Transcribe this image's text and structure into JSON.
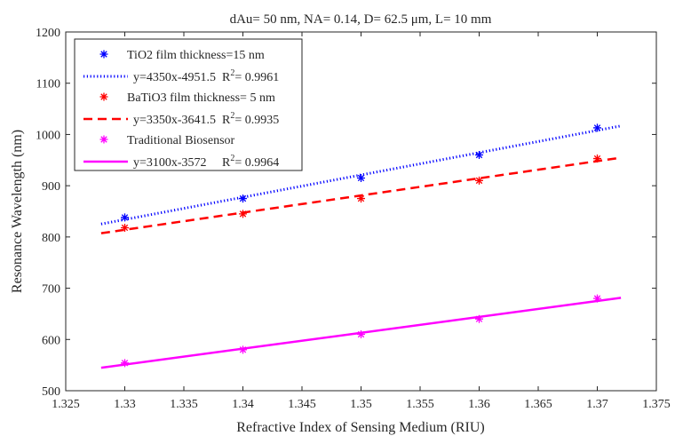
{
  "chart_data": {
    "type": "scatter",
    "title": "dAu= 50 nm,  NA= 0.14,  D= 62.5 μm,  L= 10 mm",
    "xlabel": "Refractive Index of Sensing Medium (RIU)",
    "ylabel": "Resonance Wavelength (nm)",
    "xlim": [
      1.325,
      1.375
    ],
    "ylim": [
      500,
      1200
    ],
    "xticks": [
      "1.325",
      "1.33",
      "1.335",
      "1.34",
      "1.345",
      "1.35",
      "1.355",
      "1.36",
      "1.365",
      "1.37",
      "1.375"
    ],
    "yticks": [
      "500",
      "600",
      "700",
      "800",
      "900",
      "1000",
      "1100",
      "1200"
    ],
    "grid": false,
    "legend_position": "top-left",
    "series": [
      {
        "name": "TiO2  film thickness=15 nm",
        "marker": "*",
        "color": "#0000ff",
        "x": [
          1.33,
          1.34,
          1.35,
          1.36,
          1.37
        ],
        "y": [
          838,
          875,
          915,
          960,
          1013
        ],
        "fit": {
          "slope": 4350,
          "intercept": -4951.5,
          "x_range": [
            1.328,
            1.372
          ],
          "style": "dotted",
          "color": "#0000ff",
          "equation": "y=4350x-4951.5",
          "r2_value": "= 0.9961"
        }
      },
      {
        "name": "BaTiO3  film thickness= 5 nm",
        "marker": "*",
        "color": "#ff0000",
        "x": [
          1.33,
          1.34,
          1.35,
          1.36,
          1.37
        ],
        "y": [
          818,
          845,
          875,
          910,
          953
        ],
        "fit": {
          "slope": 3350,
          "intercept": -3641.5,
          "x_range": [
            1.328,
            1.372
          ],
          "style": "dashed",
          "color": "#ff0000",
          "equation": "y=3350x-3641.5",
          "r2_value": "= 0.9935"
        }
      },
      {
        "name": "Traditional Biosensor",
        "marker": "*",
        "color": "#ff00ff",
        "x": [
          1.33,
          1.34,
          1.35,
          1.36,
          1.37
        ],
        "y": [
          554,
          580,
          610,
          640,
          680
        ],
        "fit": {
          "slope": 3100,
          "intercept": -3572,
          "x_range": [
            1.328,
            1.372
          ],
          "style": "solid",
          "color": "#ff00ff",
          "equation": "y=3100x-3572",
          "r2_value": "= 0.9964"
        }
      }
    ]
  }
}
